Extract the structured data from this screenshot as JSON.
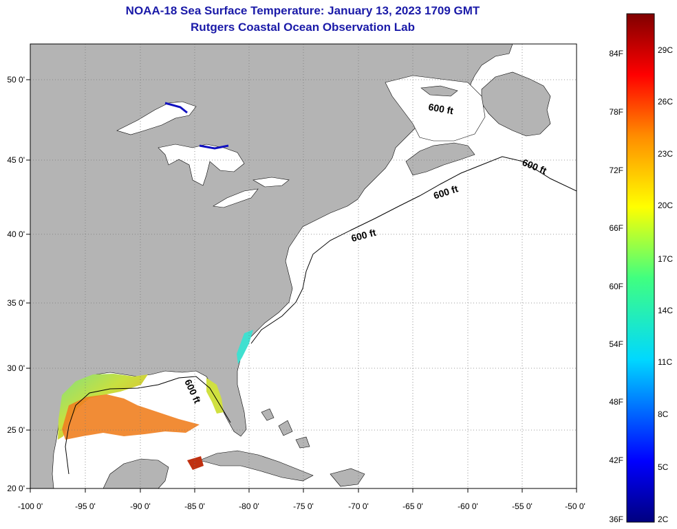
{
  "title_line1": "NOAA-18 Sea Surface Temperature:  January 13, 2023 1709 GMT",
  "title_line2": "Rutgers Coastal Ocean Observation Lab",
  "lon_labels": [
    "-100 0'",
    "-95 0'",
    "-90 0'",
    "-85 0'",
    "-80 0'",
    "-75 0'",
    "-70 0'",
    "-65 0'",
    "-60 0'",
    "-55 0'",
    "-50 0'"
  ],
  "lat_labels": [
    "50 0'",
    "45 0'",
    "40 0'",
    "35 0'",
    "30 0'",
    "25 0'",
    "20 0'"
  ],
  "contour_labels": [
    "600 ft",
    "600 ft",
    "600 ft",
    "600 ft",
    "600 ft"
  ],
  "colorbar": {
    "fahrenheit": [
      "84F",
      "78F",
      "72F",
      "66F",
      "60F",
      "54F",
      "48F",
      "42F",
      "36F"
    ],
    "celsius": [
      "29C",
      "26C",
      "23C",
      "20C",
      "17C",
      "14C",
      "11C",
      "8C",
      "5C",
      "2C"
    ]
  },
  "colors": {
    "land": "#b4b4b4",
    "ocean": "#ffffff",
    "title": "#1a1aa8",
    "grid": "#888888"
  }
}
